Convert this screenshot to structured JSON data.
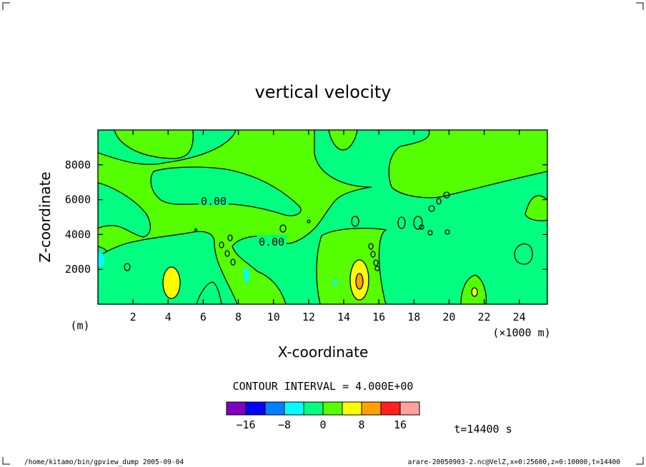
{
  "chart_data": {
    "type": "contour",
    "title": "vertical velocity",
    "xlabel": "X-coordinate",
    "ylabel": "Z-coordinate",
    "x_unit": "(×1000 m)",
    "y_unit": "(m)",
    "xlim": [
      0,
      25.6
    ],
    "ylim": [
      0,
      10000
    ],
    "x_ticks": [
      "2",
      "4",
      "6",
      "8",
      "10",
      "12",
      "14",
      "16",
      "18",
      "20",
      "22",
      "24"
    ],
    "x_tick_values": [
      2,
      4,
      6,
      8,
      10,
      12,
      14,
      16,
      18,
      20,
      22,
      24
    ],
    "y_ticks": [
      "2000",
      "4000",
      "6000",
      "8000"
    ],
    "y_tick_values": [
      2000,
      4000,
      6000,
      8000
    ],
    "contour_labels": [
      "0.00",
      "0.00"
    ],
    "contour_interval_text": "CONTOUR INTERVAL = 4.000E+00",
    "colorbar": {
      "levels": [
        -20,
        -16,
        -12,
        -8,
        -4,
        0,
        4,
        8,
        12,
        16,
        20
      ],
      "colors": [
        "#7f00bf",
        "#0000ff",
        "#0080ff",
        "#00ffff",
        "#00ff80",
        "#55ff00",
        "#ffff00",
        "#ffa000",
        "#ff2020",
        "#ffa0a0"
      ],
      "labels": [
        "−16",
        "−8",
        "0",
        "8",
        "16"
      ],
      "label_values": [
        -16,
        -8,
        0,
        8,
        16
      ]
    },
    "features": [
      {
        "x": 4.2,
        "z": 1300,
        "value": 6
      },
      {
        "x": 14.9,
        "z": 1300,
        "value": 12
      },
      {
        "x": 21.3,
        "z": 700,
        "value": 6
      },
      {
        "x": 8.5,
        "z": 1500,
        "value": -6
      },
      {
        "x": 0.3,
        "z": 2400,
        "value": -6
      },
      {
        "x": 13.4,
        "z": 1200,
        "value": -5
      }
    ]
  },
  "time_label": "t=14400 s",
  "footer": {
    "left": "/home/kitamo/bin/gpview_dump  2005-09-04",
    "right": "arare-20050903-2.nc@VelZ,x=0:25600,z=0:10000,t=14400"
  }
}
